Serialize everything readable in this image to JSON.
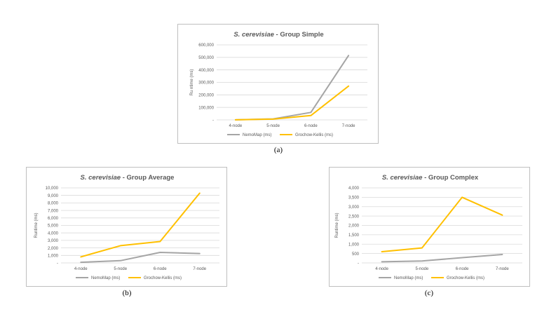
{
  "colors": {
    "nemomap": "#a5a5a5",
    "grochow": "#ffc000",
    "grid": "#d9d9d9",
    "axis_text": "#595959",
    "title_text": "#595959"
  },
  "captions": [
    "(a)",
    "(b)",
    "(c)"
  ],
  "chart_data": [
    {
      "type": "line",
      "title_italic": "S. cerevisiae",
      "title_rest": " - Group Simple",
      "xlabel": "",
      "ylabel": "Ru ntime (ms)",
      "categories": [
        "4-node",
        "5-node",
        "6-node",
        "7-node"
      ],
      "yticks": [
        "-",
        "100,000",
        "200,000",
        "300,000",
        "400,000",
        "500,000",
        "600,000"
      ],
      "ylim": [
        0,
        600000
      ],
      "grid": true,
      "legend": "bottom",
      "series": [
        {
          "name": "NemoMap (ms)",
          "color": "#a5a5a5",
          "values": [
            500,
            8000,
            60000,
            515000
          ]
        },
        {
          "name": "Grochow-Kellis (ms)",
          "color": "#ffc000",
          "values": [
            700,
            6000,
            35000,
            270000
          ]
        }
      ]
    },
    {
      "type": "line",
      "title_italic": "S. cerevisiae",
      "title_rest": " - Group Average",
      "xlabel": "",
      "ylabel": "Runtime (ms)",
      "categories": [
        "4-node",
        "5-node",
        "6-node",
        "7-node"
      ],
      "yticks": [
        "-",
        "1,000",
        "2,000",
        "3,000",
        "4,000",
        "5,000",
        "6,000",
        "7,000",
        "8,000",
        "9,000",
        "10,000"
      ],
      "ylim": [
        0,
        10000
      ],
      "grid": true,
      "legend": "bottom",
      "series": [
        {
          "name": "NemoMap (ms)",
          "color": "#a5a5a5",
          "values": [
            80,
            300,
            1400,
            1250
          ]
        },
        {
          "name": "Grochow-Kellis (ms)",
          "color": "#ffc000",
          "values": [
            800,
            2300,
            2850,
            9300
          ]
        }
      ]
    },
    {
      "type": "line",
      "title_italic": "S. cerevisiae",
      "title_rest": " - Group Complex",
      "xlabel": "",
      "ylabel": "Runtime (ms)",
      "categories": [
        "4-node",
        "5-node",
        "6-node",
        "7-node"
      ],
      "yticks": [
        "-",
        "500",
        "1,000",
        "1,500",
        "2,000",
        "2,500",
        "3,000",
        "3,500",
        "4,000"
      ],
      "ylim": [
        0,
        4000
      ],
      "grid": true,
      "legend": "bottom",
      "series": [
        {
          "name": "NemoMap (ms)",
          "color": "#a5a5a5",
          "values": [
            60,
            100,
            280,
            450
          ]
        },
        {
          "name": "Grochow-Kellis (ms)",
          "color": "#ffc000",
          "values": [
            600,
            800,
            3500,
            2550
          ]
        }
      ]
    }
  ]
}
